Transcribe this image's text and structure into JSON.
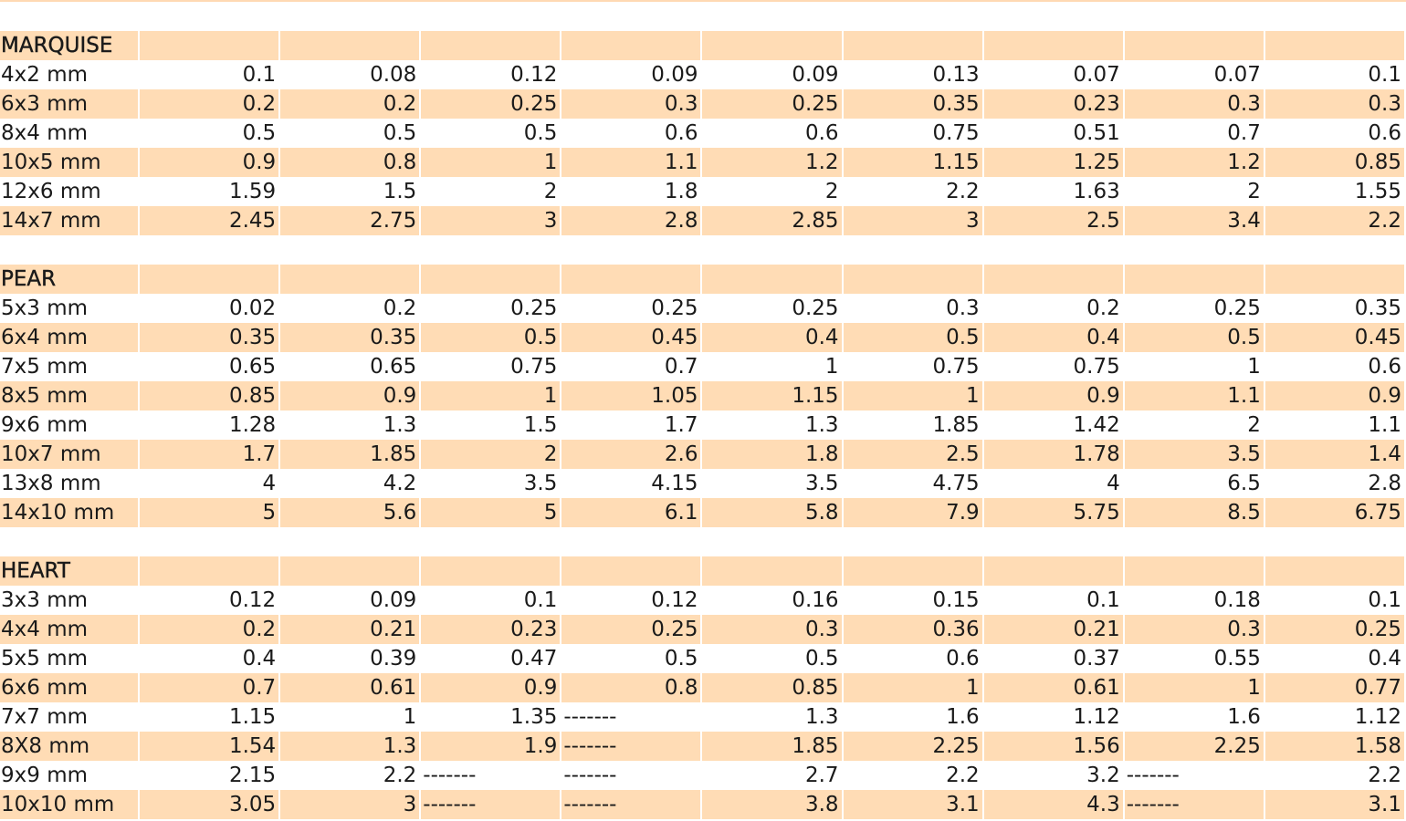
{
  "sections": [
    {
      "title": "MARQUISE",
      "rows": [
        {
          "size": "4x2 mm",
          "values": [
            "0.1",
            "0.08",
            "0.12",
            "0.09",
            "0.09",
            "0.13",
            "0.07",
            "0.07",
            "0.1"
          ]
        },
        {
          "size": "6x3 mm",
          "values": [
            "0.2",
            "0.2",
            "0.25",
            "0.3",
            "0.25",
            "0.35",
            "0.23",
            "0.3",
            "0.3"
          ]
        },
        {
          "size": "8x4 mm",
          "values": [
            "0.5",
            "0.5",
            "0.5",
            "0.6",
            "0.6",
            "0.75",
            "0.51",
            "0.7",
            "0.6"
          ]
        },
        {
          "size": "10x5 mm",
          "values": [
            "0.9",
            "0.8",
            "1",
            "1.1",
            "1.2",
            "1.15",
            "1.25",
            "1.2",
            "0.85"
          ]
        },
        {
          "size": "12x6 mm",
          "values": [
            "1.59",
            "1.5",
            "2",
            "1.8",
            "2",
            "2.2",
            "1.63",
            "2",
            "1.55"
          ]
        },
        {
          "size": "14x7 mm",
          "values": [
            "2.45",
            "2.75",
            "3",
            "2.8",
            "2.85",
            "3",
            "2.5",
            "3.4",
            "2.2"
          ]
        }
      ]
    },
    {
      "title": "PEAR",
      "rows": [
        {
          "size": "5x3 mm",
          "values": [
            "0.02",
            "0.2",
            "0.25",
            "0.25",
            "0.25",
            "0.3",
            "0.2",
            "0.25",
            "0.35"
          ]
        },
        {
          "size": "6x4 mm",
          "values": [
            "0.35",
            "0.35",
            "0.5",
            "0.45",
            "0.4",
            "0.5",
            "0.4",
            "0.5",
            "0.45"
          ]
        },
        {
          "size": "7x5 mm",
          "values": [
            "0.65",
            "0.65",
            "0.75",
            "0.7",
            "1",
            "0.75",
            "0.75",
            "1",
            "0.6"
          ]
        },
        {
          "size": "8x5 mm",
          "values": [
            "0.85",
            "0.9",
            "1",
            "1.05",
            "1.15",
            "1",
            "0.9",
            "1.1",
            "0.9"
          ]
        },
        {
          "size": "9x6 mm",
          "values": [
            "1.28",
            "1.3",
            "1.5",
            "1.7",
            "1.3",
            "1.85",
            "1.42",
            "2",
            "1.1"
          ]
        },
        {
          "size": "10x7 mm",
          "values": [
            "1.7",
            "1.85",
            "2",
            "2.6",
            "1.8",
            "2.5",
            "1.78",
            "3.5",
            "1.4"
          ]
        },
        {
          "size": "13x8 mm",
          "values": [
            "4",
            "4.2",
            "3.5",
            "4.15",
            "3.5",
            "4.75",
            "4",
            "6.5",
            "2.8"
          ]
        },
        {
          "size": "14x10 mm",
          "values": [
            "5",
            "5.6",
            "5",
            "6.1",
            "5.8",
            "7.9",
            "5.75",
            "8.5",
            "6.75"
          ]
        }
      ]
    },
    {
      "title": "HEART",
      "rows": [
        {
          "size": "3x3 mm",
          "values": [
            "0.12",
            "0.09",
            "0.1",
            "0.12",
            "0.16",
            "0.15",
            "0.1",
            "0.18",
            "0.1"
          ]
        },
        {
          "size": "4x4 mm",
          "values": [
            "0.2",
            "0.21",
            "0.23",
            "0.25",
            "0.3",
            "0.36",
            "0.21",
            "0.3",
            "0.25"
          ]
        },
        {
          "size": "5x5 mm",
          "values": [
            "0.4",
            "0.39",
            "0.47",
            "0.5",
            "0.5",
            "0.6",
            "0.37",
            "0.55",
            "0.4"
          ]
        },
        {
          "size": "6x6 mm",
          "values": [
            "0.7",
            "0.61",
            "0.9",
            "0.8",
            "0.85",
            "1",
            "0.61",
            "1",
            "0.77"
          ]
        },
        {
          "size": "7x7 mm",
          "values": [
            "1.15",
            "1",
            "1.35",
            "-------",
            "1.3",
            "1.6",
            "1.12",
            "1.6",
            "1.12"
          ]
        },
        {
          "size": "8X8 mm",
          "values": [
            "1.54",
            "1.3",
            "1.9",
            "-------",
            "1.85",
            "2.25",
            "1.56",
            "2.25",
            "1.58"
          ]
        },
        {
          "size": "9x9 mm",
          "values": [
            "2.15",
            "2.2",
            "-------",
            "-------",
            "2.7",
            "2.2",
            "3.2",
            "-------",
            "2.2"
          ]
        },
        {
          "size": "10x10 mm",
          "values": [
            "3.05",
            "3",
            "-------",
            "-------",
            "3.8",
            "3.1",
            "4.3",
            "-------",
            "3.1"
          ]
        }
      ]
    }
  ],
  "colors": {
    "row_shade": "#ffdcb5",
    "row_plain": "#ffffff"
  }
}
